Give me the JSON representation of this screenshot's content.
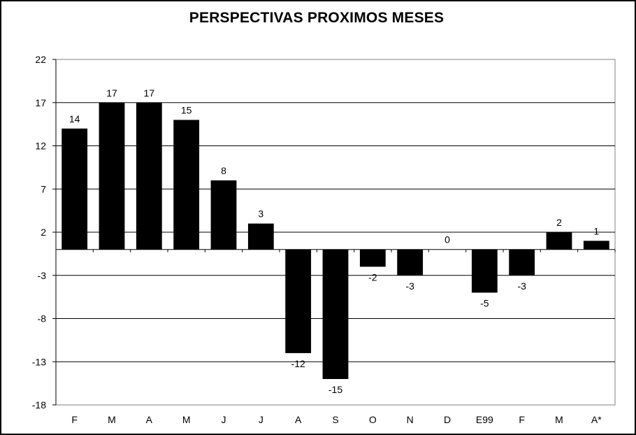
{
  "chart_data": {
    "type": "bar",
    "title": "PERSPECTIVAS PROXIMOS MESES",
    "xlabel": "",
    "ylabel": "",
    "categories": [
      "F",
      "M",
      "A",
      "M",
      "J",
      "J",
      "A",
      "S",
      "O",
      "N",
      "D",
      "E99",
      "F",
      "M",
      "A*"
    ],
    "values": [
      14,
      17,
      17,
      15,
      8,
      3,
      -12,
      -15,
      -2,
      -3,
      0,
      -5,
      -3,
      2,
      1
    ],
    "ylim": [
      -18,
      22
    ],
    "yticks": [
      22,
      17,
      12,
      7,
      2,
      -3,
      -8,
      -13,
      -18
    ],
    "grid": true,
    "legend": "none",
    "data_labels": true,
    "colors": {
      "bar": "#000000",
      "grid": "#000000",
      "plot_bg": "#ffffff"
    }
  }
}
